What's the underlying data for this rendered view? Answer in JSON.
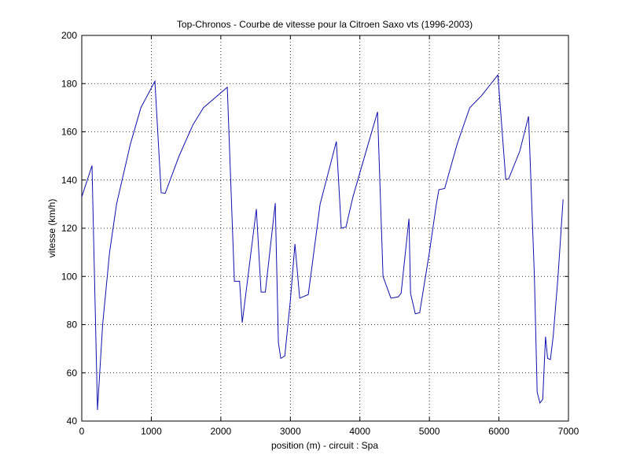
{
  "chart_data": {
    "type": "line",
    "title": "Top-Chronos - Courbe de vitesse pour la Citroen Saxo vts (1996-2003)",
    "xlabel": "position (m) - circuit : Spa",
    "ylabel": "vitesse (km/h)",
    "x": [
      0,
      147,
      226,
      300,
      400,
      500,
      700,
      850,
      1052,
      1142,
      1200,
      1400,
      1600,
      1750,
      2093,
      2195,
      2270,
      2308,
      2511,
      2579,
      2640,
      2783,
      2828,
      2862,
      2920,
      3000,
      3066,
      3134,
      3258,
      3428,
      3662,
      3732,
      3800,
      3900,
      4100,
      4254,
      4333,
      4446,
      4550,
      4593,
      4706,
      4729,
      4797,
      4860,
      5000,
      5100,
      5136,
      5220,
      5400,
      5580,
      5750,
      5985,
      6098,
      6140,
      6300,
      6426,
      6510,
      6550,
      6590,
      6630,
      6670,
      6700,
      6740,
      6780,
      6850,
      6923
    ],
    "series": [
      {
        "name": "vitesse",
        "color": "#1010b0",
        "values": [
          133,
          146,
          44.6,
          80,
          110,
          130,
          155,
          170,
          181,
          134.7,
          134.5,
          150,
          163,
          170,
          178.5,
          98,
          98,
          80.8,
          128,
          93.5,
          93.5,
          130.4,
          72.6,
          66,
          67,
          90,
          113.5,
          91,
          92.5,
          130,
          156,
          120,
          120.5,
          133,
          153,
          168.3,
          100,
          91,
          91.5,
          93,
          124,
          93,
          84.5,
          85,
          110,
          130,
          136,
          136.5,
          155,
          170,
          175,
          183.6,
          140.3,
          140.5,
          152,
          166.4,
          100,
          52,
          47.5,
          49,
          75,
          66,
          65.5,
          75,
          100,
          132
        ]
      }
    ],
    "xlim": [
      0,
      7000
    ],
    "xticks": [
      0,
      1000,
      2000,
      3000,
      4000,
      5000,
      6000,
      7000
    ],
    "ylim": [
      40,
      200
    ],
    "yticks": [
      40,
      60,
      80,
      100,
      120,
      140,
      160,
      180,
      200
    ],
    "grid": true
  }
}
